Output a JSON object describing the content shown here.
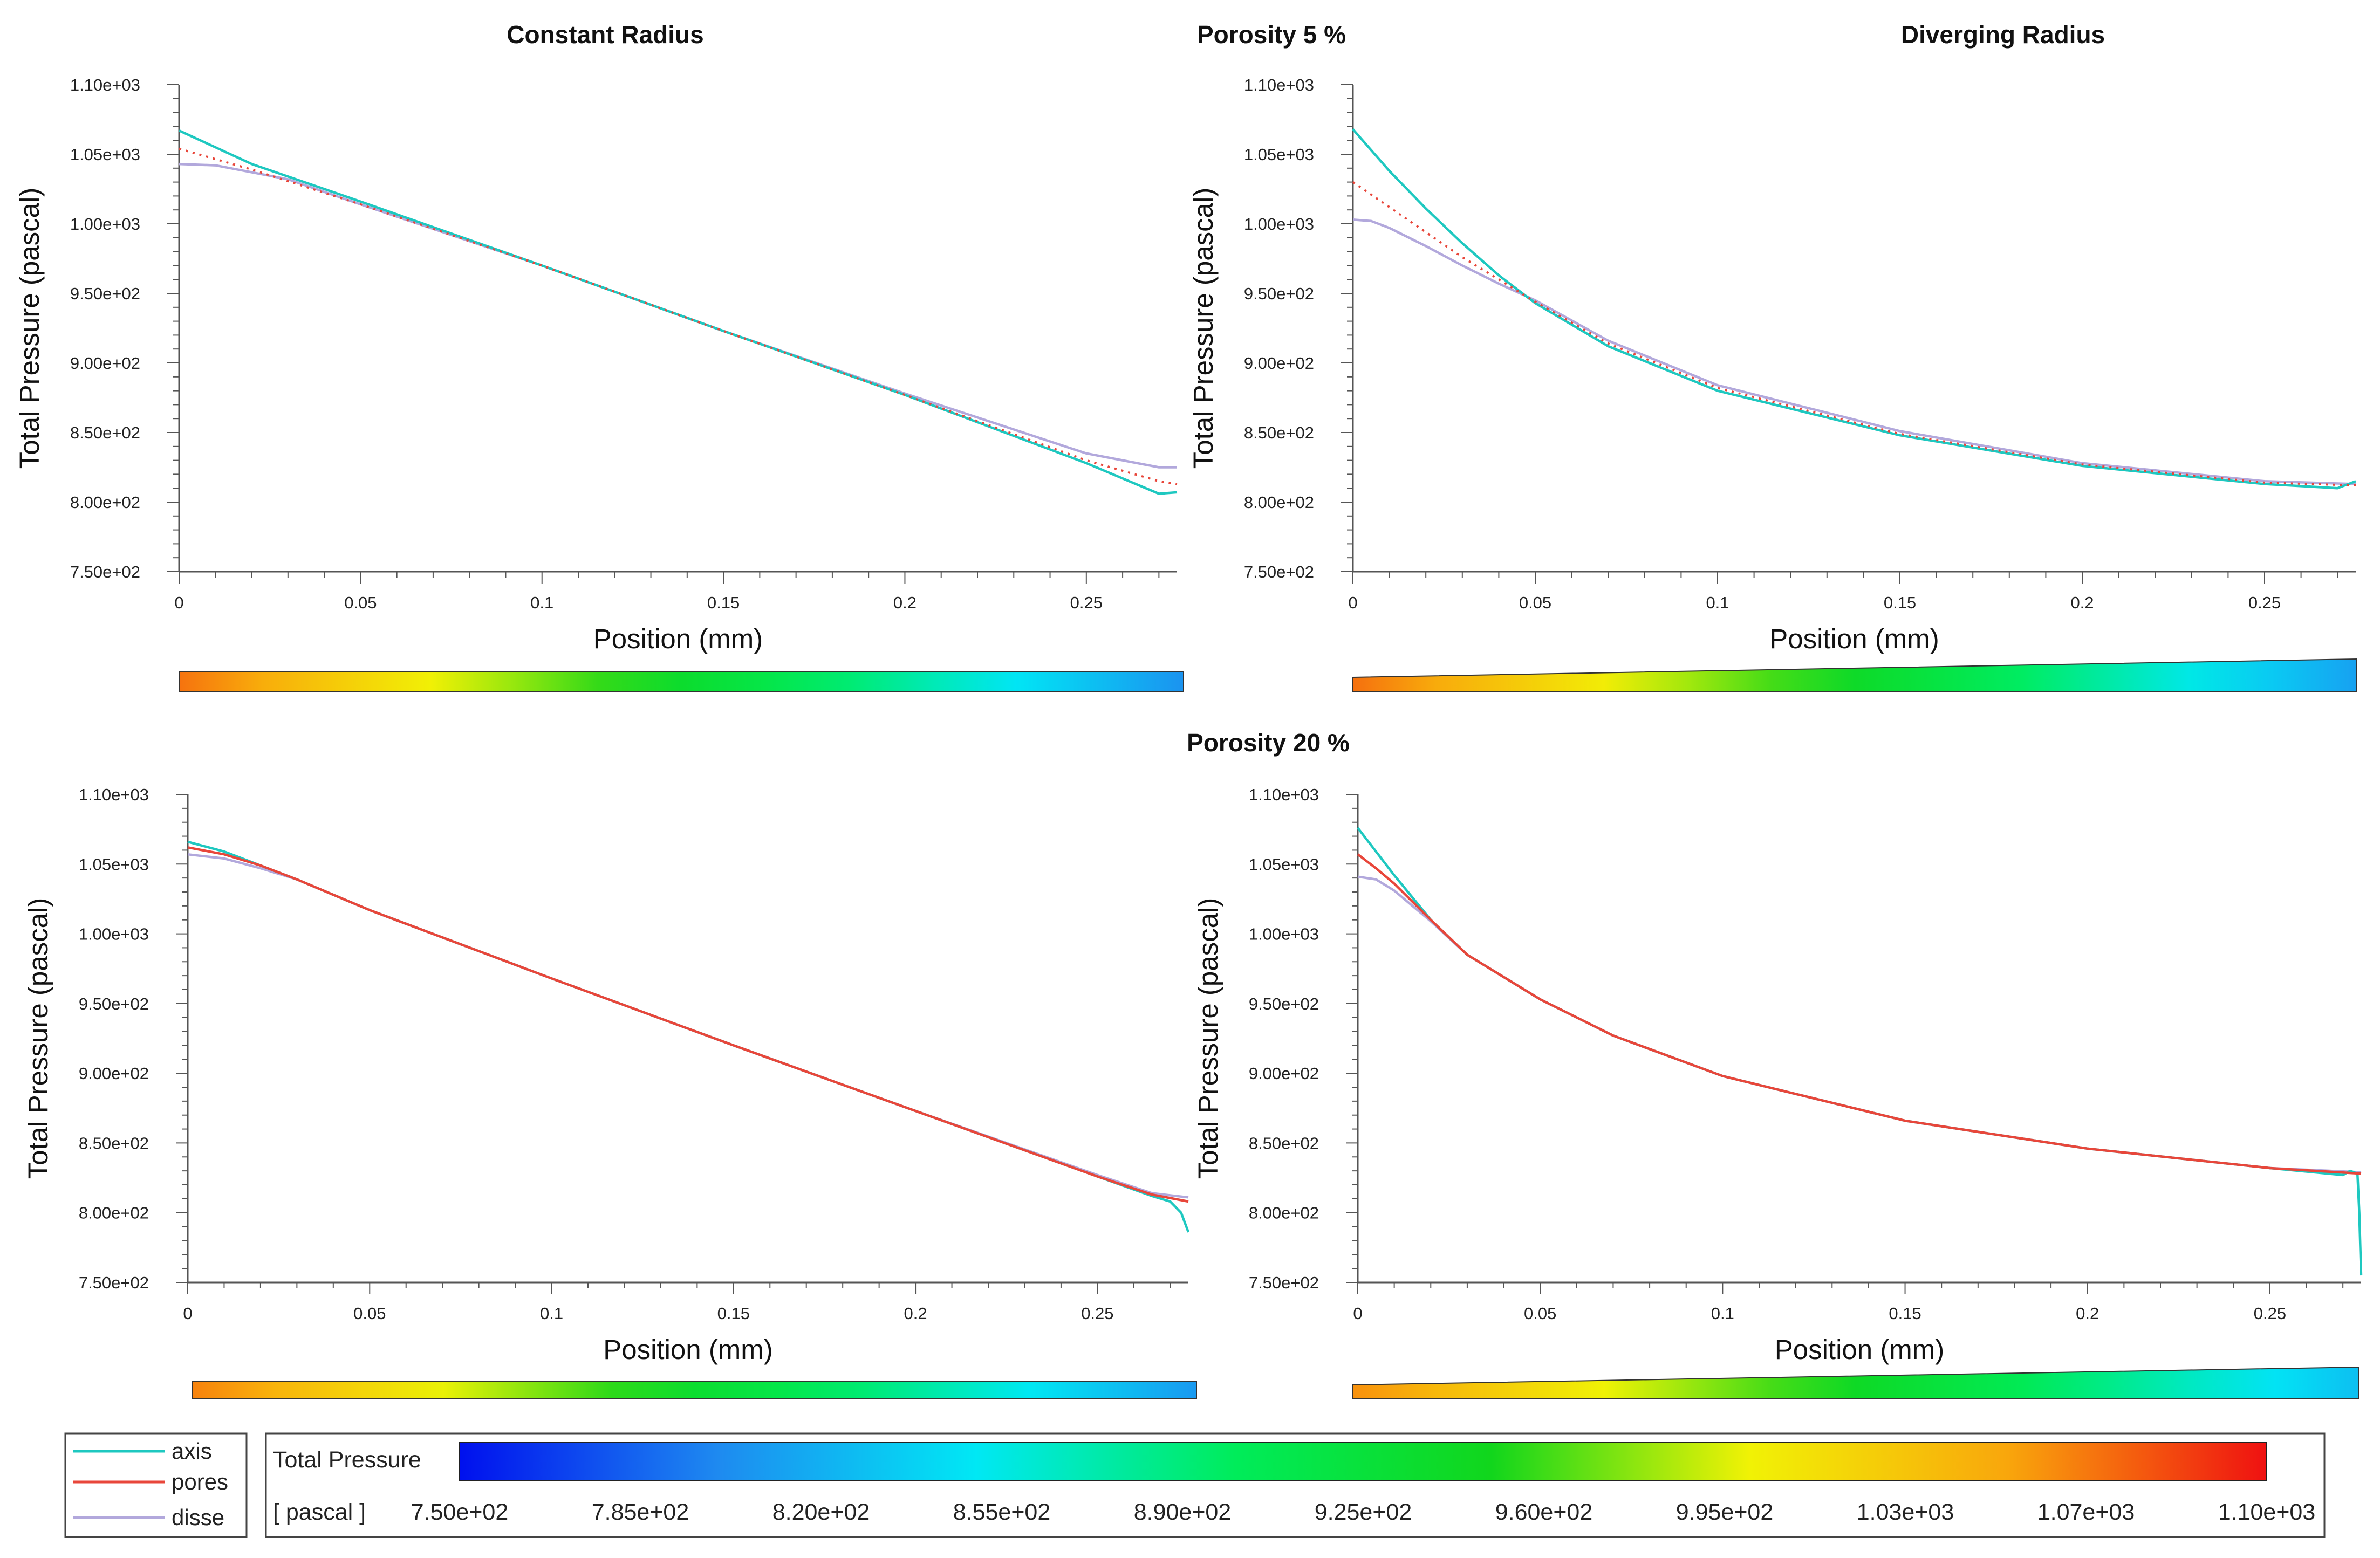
{
  "figure_titles": {
    "constant": "Constant Radius",
    "porosity5": "Porosity 5 %",
    "diverging": "Diverging Radius",
    "porosity20": "Porosity 20 %"
  },
  "chart_data": [
    {
      "id": "p5_constant",
      "type": "line",
      "xlabel": "Position (mm)",
      "ylabel": "Total Pressure (pascal)",
      "xlim": [
        0,
        0.275
      ],
      "ylim": [
        750,
        1100
      ],
      "xticks": [
        0,
        0.05,
        0.1,
        0.15,
        0.2,
        0.25
      ],
      "xtick_labels": [
        "0",
        "0.05",
        "0.1",
        "0.15",
        "0.2",
        "0.25"
      ],
      "yticks": [
        750,
        800,
        850,
        900,
        950,
        1000,
        1050,
        1100
      ],
      "ytick_labels": [
        "7.50e+02",
        "8.00e+02",
        "8.50e+02",
        "9.00e+02",
        "9.50e+02",
        "1.00e+03",
        "1.05e+03",
        "1.10e+03"
      ],
      "series": [
        {
          "name": "axis",
          "style": "solid",
          "x": [
            0,
            0.02,
            0.05,
            0.1,
            0.15,
            0.2,
            0.25,
            0.27,
            0.275
          ],
          "y": [
            1067,
            1043,
            1016,
            970,
            923,
            877,
            828,
            806,
            807
          ]
        },
        {
          "name": "pores",
          "style": "dotted",
          "x": [
            0,
            0.02,
            0.05,
            0.1,
            0.15,
            0.2,
            0.25,
            0.27,
            0.275
          ],
          "y": [
            1054,
            1039,
            1014,
            970,
            923,
            877,
            830,
            815,
            813
          ]
        },
        {
          "name": "disse",
          "style": "solid",
          "x": [
            0,
            0.01,
            0.03,
            0.05,
            0.1,
            0.15,
            0.2,
            0.25,
            0.27,
            0.275
          ],
          "y": [
            1043,
            1042,
            1032,
            1014,
            970,
            923,
            878,
            835,
            825,
            825
          ]
        }
      ]
    },
    {
      "id": "p5_diverging",
      "type": "line",
      "xlabel": "Position (mm)",
      "ylabel": "Total Pressure (pascal)",
      "xlim": [
        0,
        0.275
      ],
      "ylim": [
        750,
        1100
      ],
      "xticks": [
        0,
        0.05,
        0.1,
        0.15,
        0.2,
        0.25
      ],
      "xtick_labels": [
        "0",
        "0.05",
        "0.1",
        "0.15",
        "0.2",
        "0.25"
      ],
      "yticks": [
        750,
        800,
        850,
        900,
        950,
        1000,
        1050,
        1100
      ],
      "ytick_labels": [
        "7.50e+02",
        "8.00e+02",
        "8.50e+02",
        "9.00e+02",
        "9.50e+02",
        "1.00e+03",
        "1.05e+03",
        "1.10e+03"
      ],
      "series": [
        {
          "name": "axis",
          "style": "solid",
          "x": [
            0,
            0.01,
            0.02,
            0.03,
            0.04,
            0.05,
            0.07,
            0.1,
            0.15,
            0.2,
            0.25,
            0.27,
            0.275
          ],
          "y": [
            1068,
            1038,
            1011,
            986,
            963,
            943,
            912,
            880,
            848,
            826,
            813,
            810,
            815
          ]
        },
        {
          "name": "pores",
          "style": "dotted",
          "x": [
            0,
            0.01,
            0.02,
            0.03,
            0.04,
            0.05,
            0.07,
            0.1,
            0.15,
            0.2,
            0.25,
            0.275
          ],
          "y": [
            1030,
            1012,
            994,
            976,
            960,
            944,
            914,
            882,
            849,
            827,
            814,
            812
          ]
        },
        {
          "name": "disse",
          "style": "solid",
          "x": [
            0,
            0.005,
            0.01,
            0.02,
            0.03,
            0.04,
            0.05,
            0.07,
            0.1,
            0.15,
            0.2,
            0.25,
            0.275
          ],
          "y": [
            1003,
            1002,
            997,
            984,
            970,
            957,
            945,
            916,
            884,
            851,
            828,
            815,
            813
          ]
        }
      ]
    },
    {
      "id": "p20_constant",
      "type": "line",
      "xlabel": "Position (mm)",
      "ylabel": "Total Pressure (pascal)",
      "xlim": [
        0,
        0.275
      ],
      "ylim": [
        750,
        1100
      ],
      "xticks": [
        0,
        0.05,
        0.1,
        0.15,
        0.2,
        0.25
      ],
      "xtick_labels": [
        "0",
        "0.05",
        "0.1",
        "0.15",
        "0.2",
        "0.25"
      ],
      "yticks": [
        750,
        800,
        850,
        900,
        950,
        1000,
        1050,
        1100
      ],
      "ytick_labels": [
        "7.50e+02",
        "8.00e+02",
        "8.50e+02",
        "9.00e+02",
        "9.50e+02",
        "1.00e+03",
        "1.05e+03",
        "1.10e+03"
      ],
      "series": [
        {
          "name": "axis",
          "style": "solid",
          "x": [
            0,
            0.01,
            0.02,
            0.03,
            0.05,
            0.1,
            0.15,
            0.2,
            0.25,
            0.265,
            0.27,
            0.273,
            0.275
          ],
          "y": [
            1066,
            1059,
            1049,
            1039,
            1017,
            968,
            920,
            873,
            826,
            812,
            808,
            800,
            786
          ]
        },
        {
          "name": "pores",
          "style": "solid",
          "x": [
            0,
            0.01,
            0.02,
            0.03,
            0.05,
            0.1,
            0.15,
            0.2,
            0.25,
            0.265,
            0.275
          ],
          "y": [
            1062,
            1057,
            1049,
            1039,
            1017,
            968,
            920,
            873,
            826,
            813,
            808
          ]
        },
        {
          "name": "disse",
          "style": "solid",
          "x": [
            0,
            0.01,
            0.02,
            0.03,
            0.05,
            0.1,
            0.15,
            0.2,
            0.25,
            0.265,
            0.275
          ],
          "y": [
            1057,
            1054,
            1047,
            1039,
            1017,
            968,
            920,
            873,
            827,
            814,
            811
          ]
        }
      ]
    },
    {
      "id": "p20_diverging",
      "type": "line",
      "xlabel": "Position (mm)",
      "ylabel": "Total Pressure (pascal)",
      "xlim": [
        0,
        0.275
      ],
      "ylim": [
        750,
        1100
      ],
      "xticks": [
        0,
        0.05,
        0.1,
        0.15,
        0.2,
        0.25
      ],
      "xtick_labels": [
        "0",
        "0.05",
        "0.1",
        "0.15",
        "0.2",
        "0.25"
      ],
      "yticks": [
        750,
        800,
        850,
        900,
        950,
        1000,
        1050,
        1100
      ],
      "ytick_labels": [
        "7.50e+02",
        "8.00e+02",
        "8.50e+02",
        "9.00e+02",
        "9.50e+02",
        "1.00e+03",
        "1.05e+03",
        "1.10e+03"
      ],
      "series": [
        {
          "name": "axis",
          "style": "solid",
          "x": [
            0,
            0.005,
            0.01,
            0.015,
            0.02,
            0.03,
            0.05,
            0.07,
            0.1,
            0.15,
            0.2,
            0.25,
            0.27,
            0.272,
            0.274,
            0.2745,
            0.275
          ],
          "y": [
            1076,
            1059,
            1042,
            1026,
            1010,
            985,
            953,
            927,
            898,
            866,
            846,
            832,
            827,
            830,
            828,
            800,
            755
          ]
        },
        {
          "name": "pores",
          "style": "solid",
          "x": [
            0,
            0.005,
            0.01,
            0.015,
            0.02,
            0.03,
            0.05,
            0.07,
            0.1,
            0.15,
            0.2,
            0.25,
            0.275
          ],
          "y": [
            1057,
            1047,
            1036,
            1023,
            1010,
            985,
            953,
            927,
            898,
            866,
            846,
            832,
            828
          ]
        },
        {
          "name": "disse",
          "style": "solid",
          "x": [
            0,
            0.005,
            0.01,
            0.015,
            0.02,
            0.03,
            0.05,
            0.07,
            0.1,
            0.15,
            0.2,
            0.25,
            0.275
          ],
          "y": [
            1041,
            1039,
            1031,
            1020,
            1009,
            985,
            953,
            927,
            898,
            866,
            846,
            832,
            829
          ]
        }
      ]
    }
  ],
  "legend": {
    "items": [
      {
        "name": "axis",
        "color": "#1ec8c0"
      },
      {
        "name": "pores",
        "color": "#e8463a"
      },
      {
        "name": "disse",
        "color": "#b2a8dc"
      }
    ]
  },
  "colorbar": {
    "title": "Total Pressure",
    "unit": "[ pascal ]",
    "min": 750,
    "max": 1100,
    "ticks": [
      "7.50e+02",
      "7.85e+02",
      "8.20e+02",
      "8.55e+02",
      "8.90e+02",
      "9.25e+02",
      "9.60e+02",
      "9.95e+02",
      "1.03e+03",
      "1.07e+03",
      "1.10e+03"
    ],
    "colors": [
      "#0010ee",
      "#1e8af0",
      "#00e8f4",
      "#00ec5a",
      "#11d61c",
      "#f1f205",
      "#f9a60c",
      "#ef1111"
    ]
  },
  "geometry_bars": [
    {
      "id": "bar_p5_constant",
      "shape": "constant",
      "from_value": 1067,
      "to_value": 805
    },
    {
      "id": "bar_p5_diverging",
      "shape": "diverging",
      "from_value": 1068,
      "to_value": 812
    },
    {
      "id": "bar_p20_constant",
      "shape": "constant",
      "from_value": 1062,
      "to_value": 808
    },
    {
      "id": "bar_p20_diverging",
      "shape": "diverging",
      "from_value": 1057,
      "to_value": 828
    }
  ]
}
